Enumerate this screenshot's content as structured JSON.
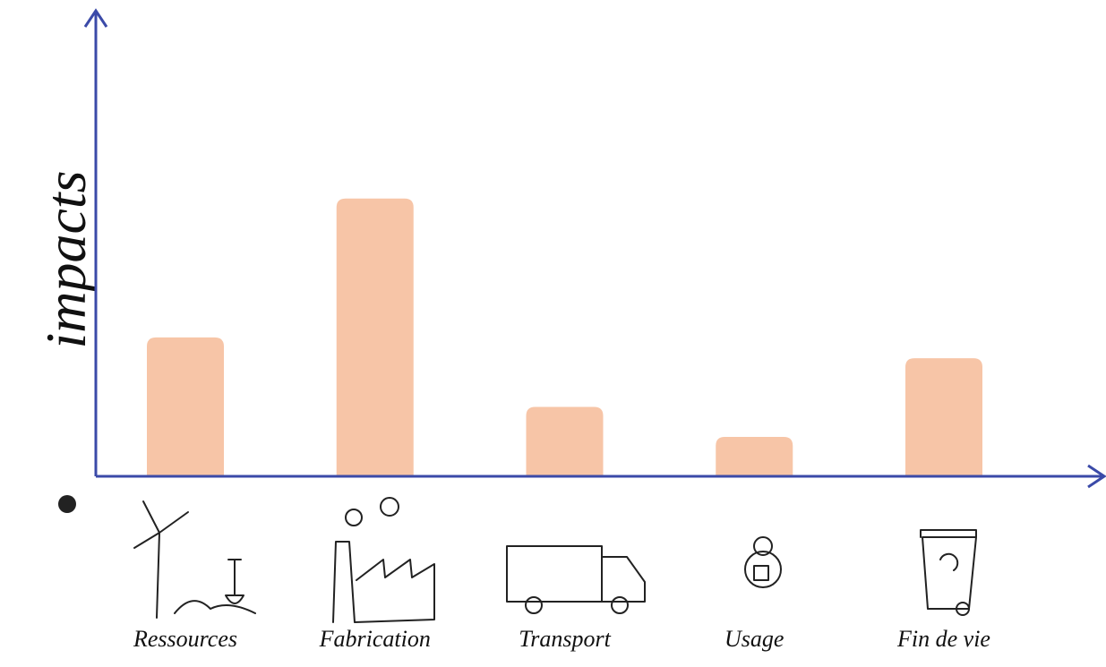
{
  "chart_data": {
    "type": "bar",
    "y_label": "impacts",
    "categories": [
      "Ressources",
      "Fabrication",
      "Transport",
      "Usage",
      "Fin de vie"
    ],
    "values": [
      30,
      60,
      15,
      8.5,
      25.5
    ],
    "color": "#f7c5a7",
    "ylim": [
      0,
      100
    ]
  }
}
